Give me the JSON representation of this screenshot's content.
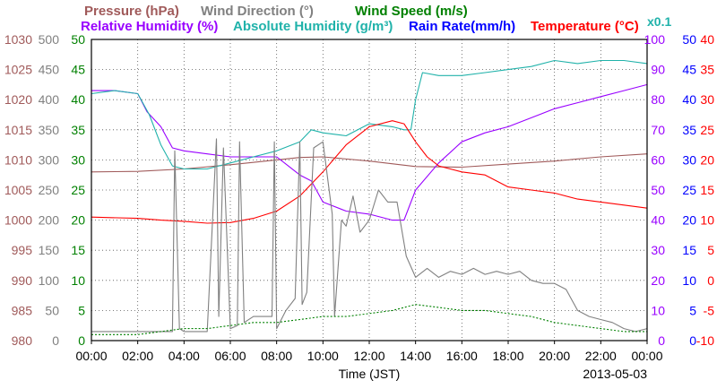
{
  "chart_data": {
    "type": "line",
    "legend": {
      "row1": [
        {
          "text": "Pressure (hPa)",
          "color": "#a05a5a"
        },
        {
          "text": "Wind Direction (°)",
          "color": "#808080"
        },
        {
          "text": "Wind Speed (m/s)",
          "color": "#008000"
        }
      ],
      "row2": [
        {
          "text": "Relative Humidity (%)",
          "color": "#9900ff"
        },
        {
          "text": "Absolute Humidity (g/m³)",
          "color": "#20b2aa"
        },
        {
          "text": "Rain Rate(mm/h)",
          "color": "#0000ff"
        },
        {
          "text": "Temperature (°C)",
          "color": "#ff0000"
        }
      ],
      "scale_note": {
        "text": "x0.1",
        "color": "#20b2aa"
      }
    },
    "xlabel": "Time (JST)",
    "date": "2013-05-03",
    "x_ticks": [
      "00:00",
      "02:00",
      "04:00",
      "06:00",
      "08:00",
      "10:00",
      "12:00",
      "14:00",
      "16:00",
      "18:00",
      "20:00",
      "22:00",
      "00:00"
    ],
    "xlim": [
      0,
      24
    ],
    "grid": true,
    "axes": {
      "pressure": {
        "ticks": [
          "1030",
          "1025",
          "1020",
          "1015",
          "1010",
          "1005",
          "1000",
          "995",
          "990",
          "985",
          "980"
        ],
        "ylim": [
          980,
          1030
        ],
        "color": "#a05a5a",
        "side": "left"
      },
      "wind_direction": {
        "ticks": [
          "500",
          "450",
          "400",
          "350",
          "300",
          "250",
          "200",
          "150",
          "100",
          "50",
          "0"
        ],
        "ylim": [
          0,
          500
        ],
        "color": "#808080",
        "side": "left"
      },
      "wind_speed": {
        "ticks": [
          "50",
          "45",
          "40",
          "35",
          "30",
          "25",
          "20",
          "15",
          "10",
          "5",
          "0"
        ],
        "ylim": [
          0,
          50
        ],
        "color": "#008000",
        "side": "left"
      },
      "humidity": {
        "ticks": [
          "100",
          "90",
          "80",
          "70",
          "60",
          "50",
          "40",
          "30",
          "20",
          "10",
          "0"
        ],
        "ylim": [
          0,
          100
        ],
        "color": "#9900ff",
        "side": "right"
      },
      "rain_rate": {
        "ticks": [
          "50",
          "45",
          "40",
          "35",
          "30",
          "25",
          "20",
          "15",
          "10",
          "5",
          "0"
        ],
        "ylim": [
          0,
          50
        ],
        "color": "#0000ff",
        "side": "right"
      },
      "temperature": {
        "ticks": [
          "40",
          "35",
          "30",
          "25",
          "20",
          "15",
          "10",
          "5",
          "0",
          "-5",
          "-10"
        ],
        "ylim": [
          -10,
          40
        ],
        "color": "#ff0000",
        "side": "right"
      }
    },
    "series": [
      {
        "name": "Pressure (hPa)",
        "axis": "pressure",
        "color": "#a05a5a",
        "x": [
          0,
          2,
          4,
          6,
          8,
          9,
          10,
          12,
          14,
          16,
          18,
          20,
          22,
          24
        ],
        "y": [
          1008,
          1008.1,
          1008.5,
          1009.2,
          1010,
          1010.4,
          1010.5,
          1009.8,
          1008.9,
          1008.8,
          1009.3,
          1009.8,
          1010.5,
          1011
        ]
      },
      {
        "name": "Relative Humidity (%)",
        "axis": "humidity",
        "color": "#9900ff",
        "x": [
          0,
          1,
          2,
          2.4,
          3,
          3.5,
          4,
          5,
          6,
          7,
          8,
          8.5,
          9,
          9.5,
          10,
          11,
          12,
          13,
          13.5,
          14,
          15,
          16,
          17,
          18,
          19,
          20,
          21,
          22,
          23,
          24
        ],
        "y": [
          83,
          83,
          82,
          76,
          71,
          64,
          63,
          62,
          61,
          61,
          61,
          58,
          55,
          53,
          46,
          43,
          42,
          40,
          40,
          50,
          59,
          66,
          69,
          71,
          74,
          77,
          79,
          81,
          83,
          85
        ]
      },
      {
        "name": "Absolute Humidity (g/m³)",
        "axis": "humidity",
        "color": "#20b2aa",
        "x": [
          0,
          1,
          2,
          2.5,
          3,
          3.5,
          4,
          5,
          6,
          7,
          8,
          9,
          9.5,
          10,
          11,
          12,
          13,
          13.5,
          13.8,
          14,
          14.3,
          15,
          16,
          17,
          18,
          19,
          20,
          21,
          22,
          23,
          24
        ],
        "y": [
          82,
          83,
          82,
          75,
          65,
          58,
          57,
          57,
          59,
          61,
          63,
          66,
          70,
          69,
          68,
          72,
          71,
          70,
          70,
          80,
          89,
          88,
          88,
          89,
          90,
          91,
          93,
          92,
          93,
          93,
          92
        ]
      },
      {
        "name": "Temperature (°C)",
        "axis": "temperature",
        "color": "#ff0000",
        "x": [
          0,
          2,
          3,
          4,
          5,
          6,
          7,
          8,
          9,
          10,
          11,
          12,
          13,
          13.5,
          14,
          14.5,
          15,
          16,
          17,
          18,
          19,
          20,
          21,
          22,
          23,
          24
        ],
        "y": [
          10.5,
          10.3,
          10,
          9.8,
          9.5,
          9.6,
          10.3,
          11.5,
          14,
          18,
          22.5,
          25.5,
          26.5,
          26,
          23,
          20.5,
          19,
          18,
          17.5,
          15.5,
          15,
          14.5,
          13.5,
          13,
          12.5,
          12
        ]
      },
      {
        "name": "Rain Rate(mm/h)",
        "axis": "rain_rate",
        "color": "#0000ff",
        "x": [
          0,
          24
        ],
        "y": [
          0,
          0
        ]
      },
      {
        "name": "Wind Direction (°)",
        "axis": "wind_direction",
        "color": "#808080",
        "x": [
          0,
          3,
          3.5,
          3.6,
          3.8,
          4,
          5,
          5.4,
          5.5,
          5.7,
          6,
          6.3,
          6.4,
          6.6,
          7,
          7.8,
          7.9,
          8,
          8.4,
          8.8,
          9,
          9.1,
          9.3,
          9.6,
          10,
          10.4,
          10.5,
          10.8,
          11,
          11.3,
          11.6,
          12,
          12.4,
          12.8,
          13.2,
          13.6,
          14,
          14.5,
          15,
          15.5,
          16,
          16.5,
          17,
          17.5,
          18,
          18.5,
          19,
          19.5,
          20,
          20.5,
          21,
          21.5,
          22,
          22.5,
          23,
          23.5,
          24
        ],
        "y": [
          15,
          15,
          15,
          315,
          20,
          15,
          15,
          335,
          40,
          320,
          20,
          25,
          330,
          30,
          40,
          40,
          330,
          20,
          50,
          70,
          330,
          60,
          80,
          320,
          330,
          210,
          40,
          200,
          190,
          240,
          180,
          200,
          250,
          230,
          230,
          140,
          105,
          120,
          105,
          115,
          110,
          120,
          110,
          115,
          110,
          115,
          100,
          95,
          95,
          85,
          50,
          40,
          35,
          30,
          20,
          15,
          20
        ]
      },
      {
        "name": "Wind Speed (m/s)",
        "axis": "wind_speed",
        "color": "#008000",
        "dashed": true,
        "x": [
          0,
          1,
          2,
          3,
          4,
          5,
          6,
          7,
          8,
          9,
          10,
          11,
          12,
          13,
          14,
          15,
          16,
          17,
          18,
          19,
          20,
          21,
          22,
          23,
          24
        ],
        "y": [
          1,
          1,
          1,
          1.5,
          2,
          2,
          2.5,
          3,
          3,
          3.5,
          4,
          4,
          4.5,
          5,
          6,
          5.5,
          5,
          5,
          4.5,
          4,
          3,
          2.5,
          2,
          1.5,
          1.5
        ]
      }
    ]
  }
}
